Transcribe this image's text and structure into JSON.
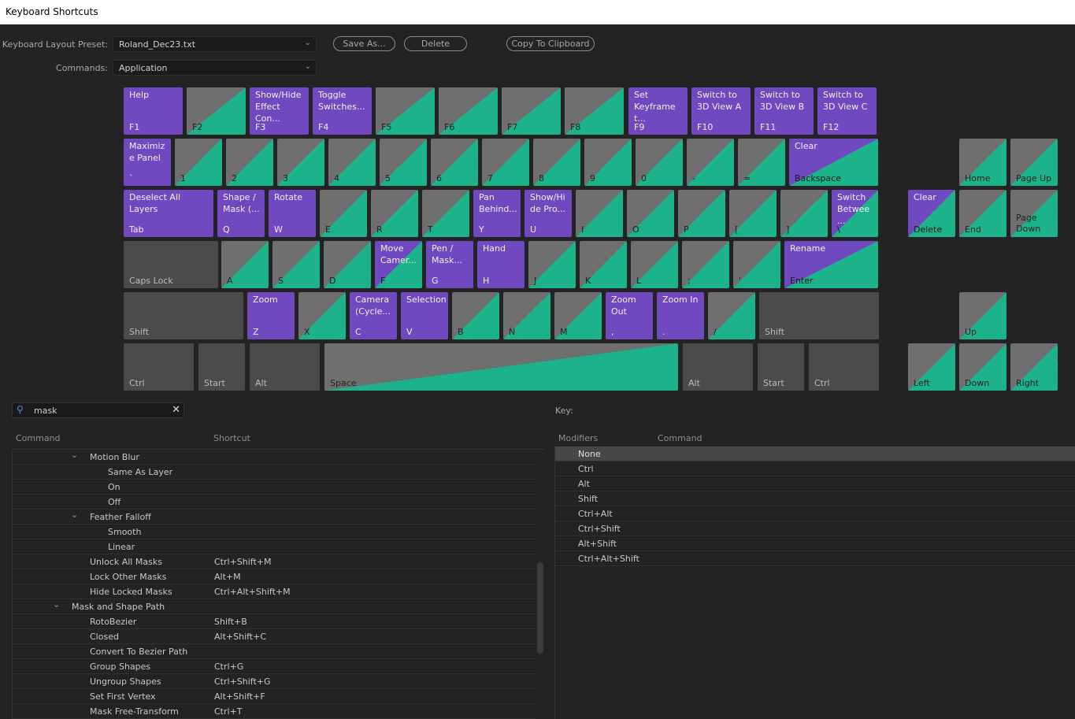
{
  "window": {
    "title": "Keyboard Shortcuts"
  },
  "preset": {
    "label": "Keyboard Layout Preset:",
    "value": "Roland_Dec23.txt"
  },
  "commands": {
    "label": "Commands:",
    "value": "Application"
  },
  "buttons": {
    "save_as": "Save As...",
    "delete": "Delete",
    "copy": "Copy To Clipboard"
  },
  "colors": {
    "assigned": "#7048c0",
    "modifier_assigned": "#1db38a",
    "unassigned": "#6f6f6f",
    "modifier_key": "#4b4b4b"
  },
  "keyboard": {
    "keys": [
      {
        "key": "F1",
        "cmd": "Help",
        "type": "p"
      },
      {
        "key": "F2",
        "cmd": "",
        "type": "s"
      },
      {
        "key": "F3",
        "cmd": "Show/Hide Effect Con...",
        "type": "p"
      },
      {
        "key": "F4",
        "cmd": "Toggle Switches...",
        "type": "p"
      },
      {
        "key": "F5",
        "cmd": "",
        "type": "s"
      },
      {
        "key": "F6",
        "cmd": "",
        "type": "s"
      },
      {
        "key": "F7",
        "cmd": "",
        "type": "s"
      },
      {
        "key": "F8",
        "cmd": "",
        "type": "s"
      },
      {
        "key": "F9",
        "cmd": "Set Keyframe t...",
        "type": "p"
      },
      {
        "key": "F10",
        "cmd": "Switch to 3D View A",
        "type": "p"
      },
      {
        "key": "F11",
        "cmd": "Switch to 3D View B",
        "type": "p"
      },
      {
        "key": "F12",
        "cmd": "Switch to 3D View C",
        "type": "p"
      },
      {
        "key": "`",
        "cmd": "Maximiz e Panel",
        "type": "p"
      },
      {
        "key": "1",
        "cmd": "",
        "type": "s"
      },
      {
        "key": "2",
        "cmd": "",
        "type": "s"
      },
      {
        "key": "3",
        "cmd": "",
        "type": "s"
      },
      {
        "key": "4",
        "cmd": "",
        "type": "s"
      },
      {
        "key": "5",
        "cmd": "",
        "type": "s"
      },
      {
        "key": "6",
        "cmd": "",
        "type": "s"
      },
      {
        "key": "7",
        "cmd": "",
        "type": "s"
      },
      {
        "key": "8",
        "cmd": "",
        "type": "s"
      },
      {
        "key": "9",
        "cmd": "",
        "type": "s"
      },
      {
        "key": "0",
        "cmd": "",
        "type": "s"
      },
      {
        "key": "-",
        "cmd": "",
        "type": "s"
      },
      {
        "key": "=",
        "cmd": "",
        "type": "s"
      },
      {
        "key": "Backspace",
        "cmd": "Clear",
        "type": "ps"
      },
      {
        "key": "Home",
        "cmd": "",
        "type": "s"
      },
      {
        "key": "Page Up",
        "cmd": "",
        "type": "s"
      },
      {
        "key": "Tab",
        "cmd": "Deselect All Layers",
        "type": "p"
      },
      {
        "key": "Q",
        "cmd": "Shape / Mask (...",
        "type": "p"
      },
      {
        "key": "W",
        "cmd": "Rotate",
        "type": "p"
      },
      {
        "key": "E",
        "cmd": "",
        "type": "s"
      },
      {
        "key": "R",
        "cmd": "",
        "type": "s"
      },
      {
        "key": "T",
        "cmd": "",
        "type": "s"
      },
      {
        "key": "Y",
        "cmd": "Pan Behind...",
        "type": "p"
      },
      {
        "key": "U",
        "cmd": "Show/Hi de Pro...",
        "type": "p"
      },
      {
        "key": "I",
        "cmd": "",
        "type": "s"
      },
      {
        "key": "O",
        "cmd": "",
        "type": "s"
      },
      {
        "key": "P",
        "cmd": "",
        "type": "s"
      },
      {
        "key": "[",
        "cmd": "",
        "type": "s"
      },
      {
        "key": "]",
        "cmd": "",
        "type": "s"
      },
      {
        "key": "\\",
        "cmd": "Switch Betwee ...",
        "type": "ps"
      },
      {
        "key": "Delete",
        "cmd": "Clear",
        "type": "ps"
      },
      {
        "key": "End",
        "cmd": "",
        "type": "s"
      },
      {
        "key": "Page Down",
        "cmd": "",
        "type": "s"
      },
      {
        "key": "Caps Lock",
        "cmd": "",
        "type": "d"
      },
      {
        "key": "A",
        "cmd": "",
        "type": "s"
      },
      {
        "key": "S",
        "cmd": "",
        "type": "s"
      },
      {
        "key": "D",
        "cmd": "",
        "type": "s"
      },
      {
        "key": "F",
        "cmd": "Move Camer...",
        "type": "ps"
      },
      {
        "key": "G",
        "cmd": "Pen / Mask...",
        "type": "p"
      },
      {
        "key": "H",
        "cmd": "Hand",
        "type": "p"
      },
      {
        "key": "J",
        "cmd": "",
        "type": "s"
      },
      {
        "key": "K",
        "cmd": "",
        "type": "s"
      },
      {
        "key": "L",
        "cmd": "",
        "type": "s"
      },
      {
        "key": ";",
        "cmd": "",
        "type": "s"
      },
      {
        "key": "'",
        "cmd": "",
        "type": "s"
      },
      {
        "key": "Enter",
        "cmd": "Rename",
        "type": "ps"
      },
      {
        "key": "Shift",
        "cmd": "",
        "type": "d"
      },
      {
        "key": "Z",
        "cmd": "Zoom",
        "type": "p"
      },
      {
        "key": "X",
        "cmd": "",
        "type": "s"
      },
      {
        "key": "C",
        "cmd": "Camera (Cycle...",
        "type": "p"
      },
      {
        "key": "V",
        "cmd": "Selection",
        "type": "p"
      },
      {
        "key": "B",
        "cmd": "",
        "type": "s"
      },
      {
        "key": "N",
        "cmd": "",
        "type": "s"
      },
      {
        "key": "M",
        "cmd": "",
        "type": "s"
      },
      {
        "key": ",",
        "cmd": "Zoom Out",
        "type": "p"
      },
      {
        "key": ".",
        "cmd": "Zoom In",
        "type": "p"
      },
      {
        "key": "/",
        "cmd": "",
        "type": "s"
      },
      {
        "key": "Shift",
        "cmd": "",
        "type": "d"
      },
      {
        "key": "Up",
        "cmd": "",
        "type": "s"
      },
      {
        "key": "Ctrl",
        "cmd": "",
        "type": "d"
      },
      {
        "key": "Start",
        "cmd": "",
        "type": "d"
      },
      {
        "key": "Alt",
        "cmd": "",
        "type": "d"
      },
      {
        "key": "Space",
        "cmd": "",
        "type": "s"
      },
      {
        "key": "Alt",
        "cmd": "",
        "type": "d"
      },
      {
        "key": "Start",
        "cmd": "",
        "type": "d"
      },
      {
        "key": "Ctrl",
        "cmd": "",
        "type": "d"
      },
      {
        "key": "Left",
        "cmd": "",
        "type": "s"
      },
      {
        "key": "Down",
        "cmd": "",
        "type": "s"
      },
      {
        "key": "Right",
        "cmd": "",
        "type": "s"
      }
    ]
  },
  "search": {
    "value": "mask",
    "search_icon": "search-icon",
    "clear_icon": "close-icon"
  },
  "command_table": {
    "headers": [
      "Command",
      "Shortcut"
    ],
    "rows": [
      {
        "level": 1,
        "expanded": true,
        "name": "Motion Blur",
        "shortcut": ""
      },
      {
        "level": 2,
        "name": "Same As Layer",
        "shortcut": ""
      },
      {
        "level": 2,
        "name": "On",
        "shortcut": ""
      },
      {
        "level": 2,
        "name": "Off",
        "shortcut": ""
      },
      {
        "level": 1,
        "expanded": true,
        "name": "Feather Falloff",
        "shortcut": ""
      },
      {
        "level": 2,
        "name": "Smooth",
        "shortcut": ""
      },
      {
        "level": 2,
        "name": "Linear",
        "shortcut": ""
      },
      {
        "level": 1.5,
        "name": "Unlock All Masks",
        "shortcut": "Ctrl+Shift+M"
      },
      {
        "level": 1.5,
        "name": "Lock Other Masks",
        "shortcut": "Alt+M"
      },
      {
        "level": 1.5,
        "name": "Hide Locked Masks",
        "shortcut": "Ctrl+Alt+Shift+M"
      },
      {
        "level": 0,
        "expanded": true,
        "name": "Mask and Shape Path",
        "shortcut": ""
      },
      {
        "level": 1.5,
        "name": "RotoBezier",
        "shortcut": "Shift+B"
      },
      {
        "level": 1.5,
        "name": "Closed",
        "shortcut": "Alt+Shift+C"
      },
      {
        "level": 1.5,
        "name": "Convert To Bezier Path",
        "shortcut": ""
      },
      {
        "level": 1.5,
        "name": "Group Shapes",
        "shortcut": "Ctrl+G"
      },
      {
        "level": 1.5,
        "name": "Ungroup Shapes",
        "shortcut": "Ctrl+Shift+G"
      },
      {
        "level": 1.5,
        "name": "Set First Vertex",
        "shortcut": "Alt+Shift+F"
      },
      {
        "level": 1.5,
        "name": "Mask Free-Transform",
        "shortcut": "Ctrl+T"
      }
    ]
  },
  "key_panel": {
    "label": "Key:",
    "headers": [
      "Modifiers",
      "Command"
    ],
    "rows": [
      "None",
      "Ctrl",
      "Alt",
      "Shift",
      "Ctrl+Alt",
      "Ctrl+Shift",
      "Alt+Shift",
      "Ctrl+Alt+Shift"
    ],
    "selected": "None"
  }
}
